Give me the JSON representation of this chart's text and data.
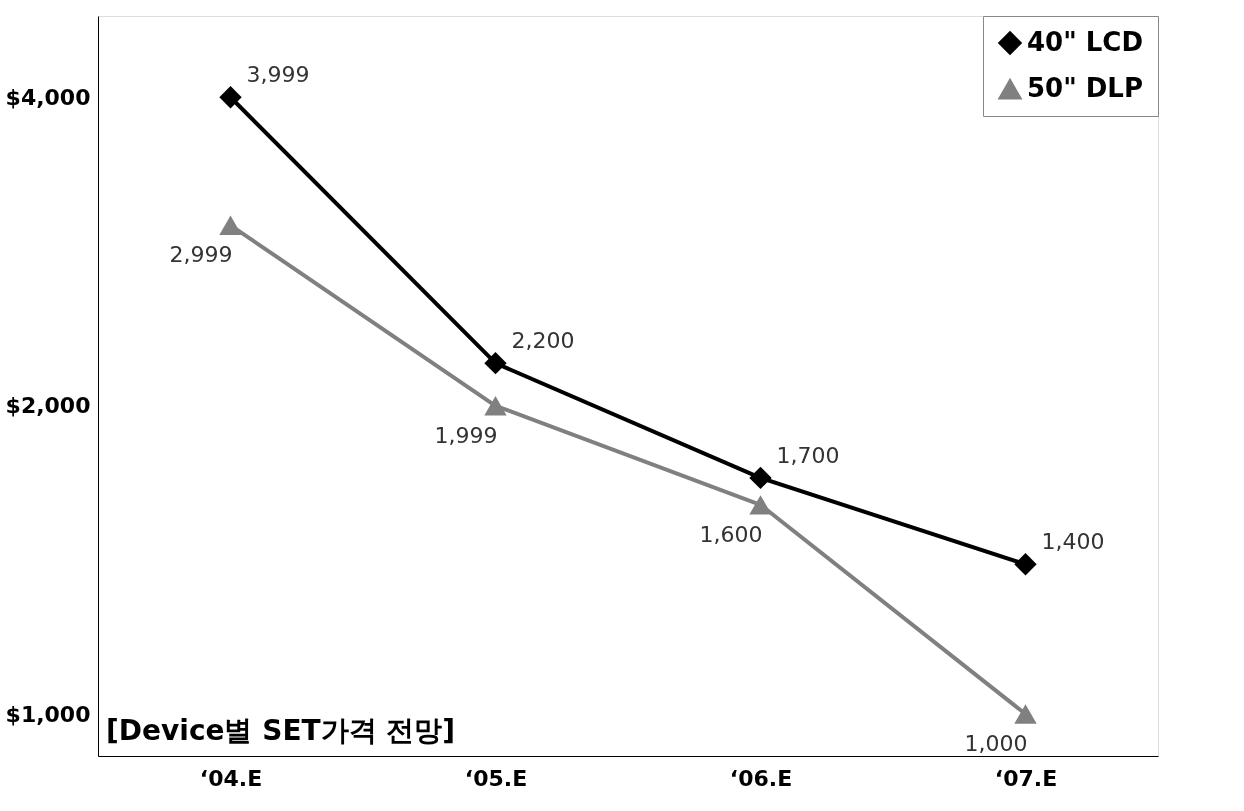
{
  "chart_data": {
    "type": "line",
    "title": "[Device별 SET가격 전망]",
    "categories": [
      "‘04.E",
      "‘05.E",
      "‘06.E",
      "‘07.E"
    ],
    "series": [
      {
        "name": "40\" LCD",
        "color": "#000000",
        "marker": "diamond",
        "values": [
          3999,
          2200,
          1700,
          1400
        ],
        "value_labels": [
          "3,999",
          "2,200",
          "1,700",
          "1,400"
        ]
      },
      {
        "name": "50\" DLP",
        "color": "#808080",
        "marker": "triangle",
        "values": [
          2999,
          1999,
          1600,
          1000
        ],
        "value_labels": [
          "2,999",
          "1,999",
          "1,600",
          "1,000"
        ]
      }
    ],
    "log": true,
    "ylim": [
      910,
      4800
    ],
    "yticks": [
      {
        "value": 1000,
        "label": "$1,000"
      },
      {
        "value": 2000,
        "label": "$2,000"
      },
      {
        "value": 4000,
        "label": "$4,000"
      }
    ],
    "grid": false,
    "legend": "top right"
  }
}
